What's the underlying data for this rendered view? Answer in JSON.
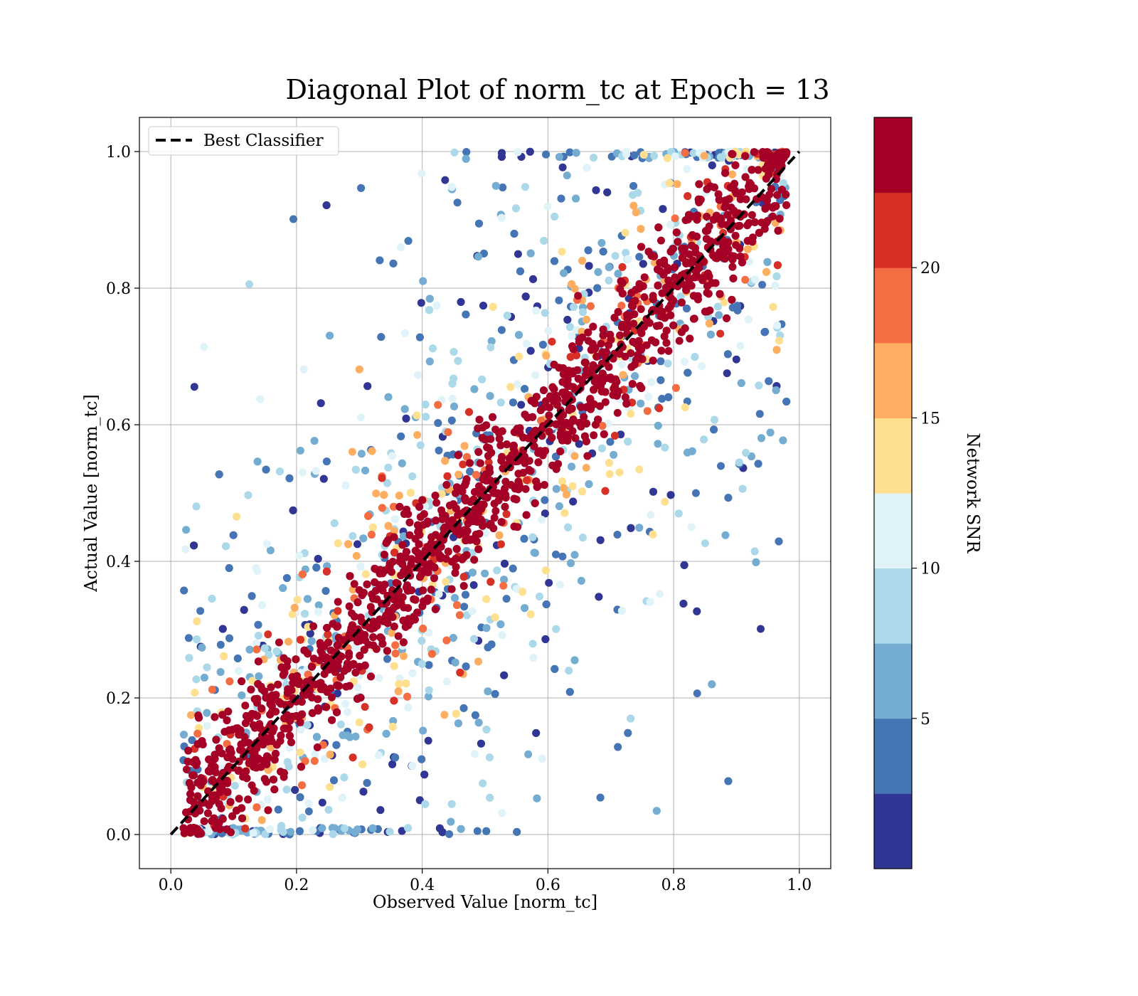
{
  "chart_data": {
    "type": "scatter",
    "title": "Diagonal Plot of norm_tc at Epoch = 13",
    "xlabel": "Observed Value [norm_tc]",
    "ylabel": "Actual Value [norm_tc]",
    "xlim": [
      -0.05,
      1.05
    ],
    "ylim": [
      -0.05,
      1.05
    ],
    "x_ticks": [
      "0.0",
      "0.2",
      "0.4",
      "0.6",
      "0.8",
      "1.0"
    ],
    "y_ticks": [
      "0.0",
      "0.2",
      "0.4",
      "0.6",
      "0.8",
      "1.0"
    ],
    "grid": true,
    "legend": {
      "placement": "upper-left",
      "entries": [
        "Best Classifier"
      ]
    },
    "reference_line": {
      "name": "Best Classifier",
      "x": [
        0,
        1
      ],
      "y": [
        0,
        1
      ],
      "style": "dashed",
      "color": "#000000"
    },
    "colorbar": {
      "label": "Network SNR",
      "range": [
        0,
        25
      ],
      "ticks": [
        "5",
        "10",
        "15",
        "20"
      ],
      "tick_values": [
        5,
        10,
        15,
        20
      ],
      "colors": [
        "#313695",
        "#4575b4",
        "#74add1",
        "#abd9e9",
        "#e0f3f8",
        "#fee090",
        "#fdae61",
        "#f46d43",
        "#d73027",
        "#a50026"
      ]
    },
    "point_cloud_summary": {
      "description_points": "dense high-SNR band along y = x; low-SNR points spread widely above and below diagonal",
      "band_half_width_high_snr": 0.1,
      "x_range": [
        0.0,
        0.98
      ],
      "y_range": [
        0.0,
        1.0
      ]
    }
  }
}
